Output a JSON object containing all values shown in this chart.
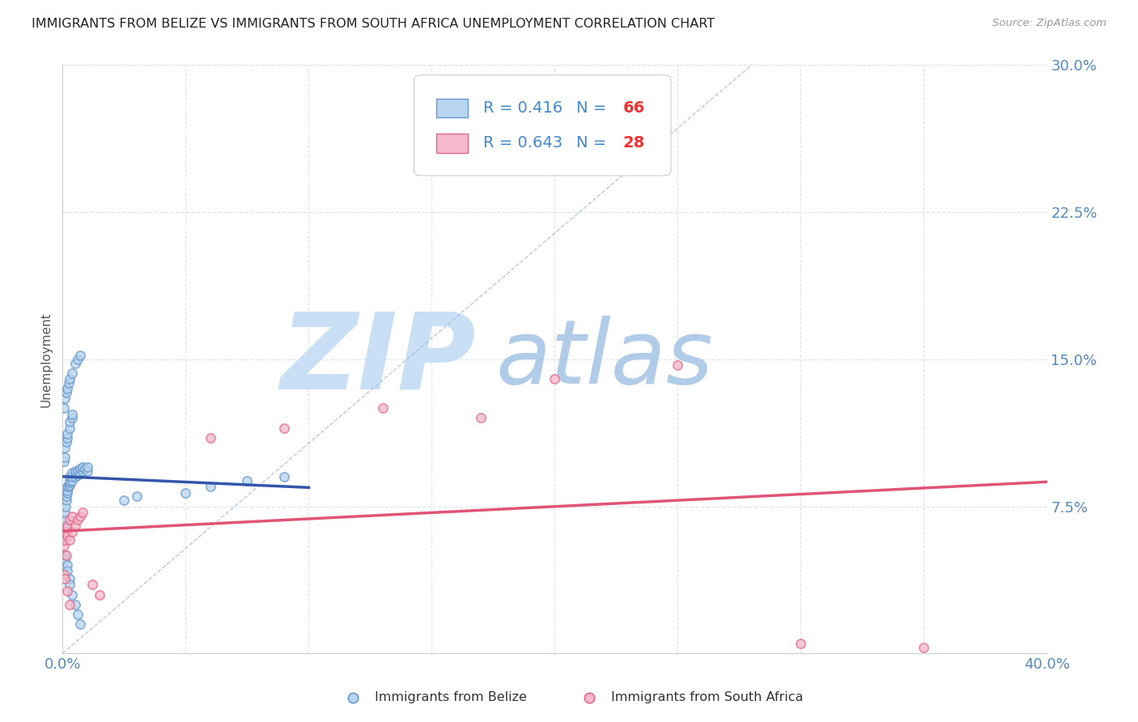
{
  "title": "IMMIGRANTS FROM BELIZE VS IMMIGRANTS FROM SOUTH AFRICA UNEMPLOYMENT CORRELATION CHART",
  "source": "Source: ZipAtlas.com",
  "ylabel": "Unemployment",
  "xlim": [
    0.0,
    0.4
  ],
  "ylim": [
    0.0,
    0.3
  ],
  "belize_color": "#b8d4f0",
  "belize_edge_color": "#6699cc",
  "sa_color": "#f5b8cc",
  "sa_edge_color": "#e06888",
  "belize_R": 0.416,
  "belize_N": 66,
  "sa_R": 0.643,
  "sa_N": 28,
  "trend_blue": "#3355aa",
  "trend_pink": "#e05575",
  "background_color": "#ffffff",
  "watermark_zip": "ZIP",
  "watermark_atlas": "atlas",
  "watermark_zip_color": "#c8dff5",
  "watermark_atlas_color": "#b0cce8",
  "title_color": "#222222",
  "tick_color": "#5588bb",
  "grid_color": "#dde5f0",
  "marker_size": 65,
  "marker_lw": 1.2,
  "legend_text_color": "#4488cc",
  "legend_n_color": "#ee3333",
  "belize_x": [
    0.0005,
    0.0008,
    0.001,
    0.001,
    0.0012,
    0.0015,
    0.0015,
    0.002,
    0.002,
    0.002,
    0.0025,
    0.003,
    0.003,
    0.003,
    0.003,
    0.004,
    0.004,
    0.004,
    0.005,
    0.005,
    0.005,
    0.006,
    0.006,
    0.007,
    0.007,
    0.008,
    0.008,
    0.009,
    0.01,
    0.01,
    0.0005,
    0.001,
    0.001,
    0.0015,
    0.002,
    0.002,
    0.003,
    0.003,
    0.004,
    0.004,
    0.0005,
    0.001,
    0.0015,
    0.002,
    0.0025,
    0.003,
    0.004,
    0.005,
    0.006,
    0.007,
    0.001,
    0.001,
    0.002,
    0.002,
    0.003,
    0.003,
    0.004,
    0.005,
    0.006,
    0.007,
    0.025,
    0.03,
    0.05,
    0.06,
    0.075,
    0.09
  ],
  "belize_y": [
    0.06,
    0.065,
    0.068,
    0.072,
    0.075,
    0.078,
    0.08,
    0.082,
    0.083,
    0.085,
    0.085,
    0.086,
    0.087,
    0.088,
    0.09,
    0.088,
    0.09,
    0.092,
    0.09,
    0.092,
    0.093,
    0.091,
    0.093,
    0.092,
    0.094,
    0.093,
    0.095,
    0.094,
    0.093,
    0.095,
    0.098,
    0.1,
    0.105,
    0.108,
    0.11,
    0.112,
    0.115,
    0.118,
    0.12,
    0.122,
    0.125,
    0.13,
    0.133,
    0.135,
    0.138,
    0.14,
    0.143,
    0.148,
    0.15,
    0.152,
    0.05,
    0.048,
    0.045,
    0.042,
    0.038,
    0.035,
    0.03,
    0.025,
    0.02,
    0.015,
    0.078,
    0.08,
    0.082,
    0.085,
    0.088,
    0.09
  ],
  "sa_x": [
    0.0005,
    0.001,
    0.001,
    0.0015,
    0.002,
    0.002,
    0.003,
    0.003,
    0.004,
    0.004,
    0.005,
    0.006,
    0.007,
    0.008,
    0.012,
    0.015,
    0.06,
    0.09,
    0.13,
    0.17,
    0.2,
    0.25,
    0.3,
    0.35,
    0.0005,
    0.001,
    0.002,
    0.003
  ],
  "sa_y": [
    0.055,
    0.058,
    0.062,
    0.05,
    0.06,
    0.065,
    0.058,
    0.068,
    0.062,
    0.07,
    0.065,
    0.068,
    0.07,
    0.072,
    0.035,
    0.03,
    0.11,
    0.115,
    0.125,
    0.12,
    0.14,
    0.147,
    0.005,
    0.003,
    0.04,
    0.038,
    0.032,
    0.025
  ],
  "gray_dash_color": "#aabbdd",
  "source_color": "#999999"
}
